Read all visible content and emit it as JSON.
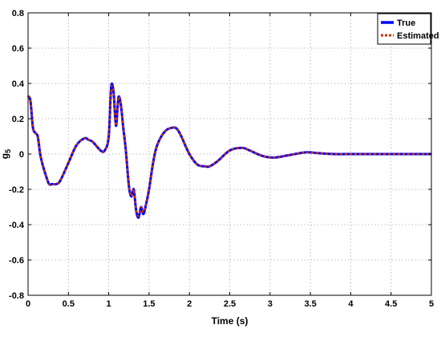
{
  "chart_data": {
    "type": "line",
    "title": "",
    "xlabel": "Time (s)",
    "ylabel": "g",
    "ylabel_subscript": "5",
    "xlim": [
      0,
      5
    ],
    "ylim": [
      -0.8,
      0.8
    ],
    "grid": true,
    "legend_position": "top-right",
    "x_ticks": [
      0,
      0.5,
      1,
      1.5,
      2,
      2.5,
      3,
      3.5,
      4,
      4.5,
      5
    ],
    "x_tick_labels": [
      "0",
      "0.5",
      "1",
      "1.5",
      "2",
      "2.5",
      "3",
      "3.5",
      "4",
      "4.5",
      "5"
    ],
    "y_ticks": [
      -0.8,
      -0.6,
      -0.4,
      -0.2,
      0,
      0.2,
      0.4,
      0.6,
      0.8
    ],
    "y_tick_labels": [
      "-0.8",
      "-0.6",
      "-0.4",
      "-0.2",
      "0",
      "0.2",
      "0.4",
      "0.6",
      "0.8"
    ],
    "x": [
      0,
      0.03,
      0.06,
      0.09,
      0.12,
      0.15,
      0.18,
      0.22,
      0.26,
      0.3,
      0.35,
      0.4,
      0.5,
      0.6,
      0.7,
      0.75,
      0.8,
      0.9,
      0.95,
      1.0,
      1.03,
      1.06,
      1.09,
      1.12,
      1.15,
      1.18,
      1.21,
      1.25,
      1.28,
      1.31,
      1.34,
      1.37,
      1.4,
      1.43,
      1.46,
      1.5,
      1.55,
      1.6,
      1.7,
      1.8,
      1.85,
      1.9,
      2.0,
      2.1,
      2.2,
      2.25,
      2.35,
      2.5,
      2.65,
      2.75,
      2.9,
      3.05,
      3.25,
      3.45,
      3.6,
      3.8,
      4.0,
      4.2,
      4.5,
      4.8,
      5.0
    ],
    "series": [
      {
        "name": "True",
        "color": "#0000ff",
        "values": [
          0.33,
          0.3,
          0.15,
          0.12,
          0.1,
          0.0,
          -0.06,
          -0.12,
          -0.17,
          -0.17,
          -0.17,
          -0.15,
          -0.05,
          0.05,
          0.09,
          0.08,
          0.07,
          0.02,
          0.02,
          0.1,
          0.38,
          0.35,
          0.16,
          0.32,
          0.28,
          0.15,
          0.03,
          -0.18,
          -0.24,
          -0.2,
          -0.32,
          -0.36,
          -0.3,
          -0.34,
          -0.29,
          -0.2,
          -0.05,
          0.05,
          0.13,
          0.15,
          0.14,
          0.1,
          0.0,
          -0.06,
          -0.07,
          -0.07,
          -0.04,
          0.02,
          0.035,
          0.02,
          -0.01,
          -0.02,
          -0.005,
          0.01,
          0.005,
          0.0,
          0.0,
          0.0,
          0.0,
          0.0,
          0.0
        ]
      },
      {
        "name": "Estimated",
        "color": "#cc3300",
        "values": [
          0.33,
          0.3,
          0.15,
          0.12,
          0.1,
          0.0,
          -0.06,
          -0.12,
          -0.17,
          -0.17,
          -0.17,
          -0.15,
          -0.05,
          0.05,
          0.09,
          0.08,
          0.07,
          0.02,
          0.02,
          0.1,
          0.37,
          0.34,
          0.16,
          0.32,
          0.28,
          0.15,
          0.03,
          -0.18,
          -0.24,
          -0.2,
          -0.32,
          -0.35,
          -0.3,
          -0.33,
          -0.29,
          -0.2,
          -0.05,
          0.05,
          0.13,
          0.15,
          0.14,
          0.1,
          0.0,
          -0.06,
          -0.07,
          -0.07,
          -0.04,
          0.02,
          0.035,
          0.02,
          -0.01,
          -0.02,
          -0.005,
          0.01,
          0.005,
          0.0,
          0.0,
          0.0,
          0.0,
          0.0,
          0.0
        ]
      }
    ]
  }
}
